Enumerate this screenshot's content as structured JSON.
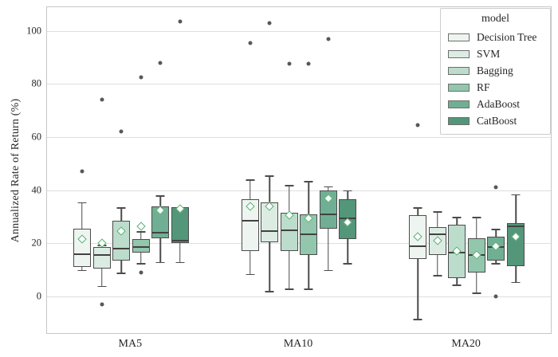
{
  "chart_data": {
    "type": "boxplot",
    "title": "",
    "ylabel": "Annualized Rate of Return (%)",
    "xlabel": "",
    "yticks": [
      0,
      20,
      40,
      60,
      80,
      100
    ],
    "ylim": [
      -13.8,
      108.9
    ],
    "grid": true,
    "categories": [
      "MA5",
      "MA10",
      "MA20"
    ],
    "legend_title": "model",
    "legend_position": "upper right",
    "colors": {
      "box_edge": "#4c4c4c",
      "median": "#424242",
      "whisker": "#4c4c4c",
      "outlier": "#585858",
      "mean_fill": "#ffffff",
      "mean_edge": "#52b06e",
      "gridline": "#dedede",
      "spine": "#c6c6c6"
    },
    "series": [
      {
        "name": "Decision Tree",
        "color": "#eef5f0",
        "boxes": [
          {
            "whislo": 10,
            "q1": 11,
            "med": 16,
            "q3": 25.5,
            "whishi": 35.5,
            "mean": 21.5,
            "outliers": [
              47
            ]
          },
          {
            "whislo": 8.5,
            "q1": 17,
            "med": 28.5,
            "q3": 36.5,
            "whishi": 44,
            "mean": 34,
            "outliers": [
              95.5
            ]
          },
          {
            "whislo": -8.5,
            "q1": 14,
            "med": 19,
            "q3": 30.5,
            "whishi": 33.5,
            "mean": 22.5,
            "outliers": [
              64.5
            ]
          }
        ]
      },
      {
        "name": "SVM",
        "color": "#dcece3",
        "boxes": [
          {
            "whislo": 4,
            "q1": 10.5,
            "med": 15.5,
            "q3": 18.5,
            "whishi": 19.5,
            "mean": 20,
            "outliers": [
              74,
              -3
            ]
          },
          {
            "whislo": 2,
            "q1": 20.5,
            "med": 24.5,
            "q3": 35.5,
            "whishi": 45.5,
            "mean": 34,
            "outliers": [
              103
            ]
          },
          {
            "whislo": 8,
            "q1": 15.5,
            "med": 23.5,
            "q3": 26,
            "whishi": 32,
            "mean": 21,
            "outliers": []
          }
        ]
      },
      {
        "name": "Bagging",
        "color": "#bcdccc",
        "boxes": [
          {
            "whislo": 9,
            "q1": 13.5,
            "med": 18,
            "q3": 28.5,
            "whishi": 33.5,
            "mean": 24.5,
            "outliers": [
              62
            ]
          },
          {
            "whislo": 3,
            "q1": 17,
            "med": 25,
            "q3": 31.5,
            "whishi": 42,
            "mean": 30.5,
            "outliers": [
              87.5
            ]
          },
          {
            "whislo": 4.5,
            "q1": 7,
            "med": 16.5,
            "q3": 27,
            "whishi": 30,
            "mean": 17,
            "outliers": []
          }
        ]
      },
      {
        "name": "RF",
        "color": "#92c6ad",
        "boxes": [
          {
            "whislo": 12.5,
            "q1": 16.5,
            "med": 18.5,
            "q3": 21.5,
            "whishi": 24.5,
            "mean": 26.5,
            "outliers": [
              82.5,
              9
            ]
          },
          {
            "whislo": 3,
            "q1": 15.5,
            "med": 23.5,
            "q3": 31,
            "whishi": 43.5,
            "mean": 29.5,
            "outliers": [
              87.5
            ]
          },
          {
            "whislo": 1.5,
            "q1": 9,
            "med": 15.5,
            "q3": 22,
            "whishi": 30,
            "mean": 15.5,
            "outliers": []
          }
        ]
      },
      {
        "name": "AdaBoost",
        "color": "#70af93",
        "boxes": [
          {
            "whislo": 13,
            "q1": 22,
            "med": 24,
            "q3": 34,
            "whishi": 38,
            "mean": 32.5,
            "outliers": [
              88
            ]
          },
          {
            "whislo": 10,
            "q1": 25.5,
            "med": 31,
            "q3": 40,
            "whishi": 41.5,
            "mean": 37,
            "outliers": [
              97
            ]
          },
          {
            "whislo": 12.5,
            "q1": 13.5,
            "med": 18.5,
            "q3": 22.5,
            "whishi": 25.5,
            "mean": 19,
            "outliers": [
              41,
              0
            ]
          }
        ]
      },
      {
        "name": "CatBoost",
        "color": "#539679",
        "boxes": [
          {
            "whislo": 13,
            "q1": 20,
            "med": 21,
            "q3": 33.5,
            "whishi": 33.5,
            "mean": 33,
            "outliers": [
              103.5
            ]
          },
          {
            "whislo": 12.5,
            "q1": 21.5,
            "med": 29.5,
            "q3": 36.5,
            "whishi": 40,
            "mean": 28,
            "outliers": []
          },
          {
            "whislo": 5.5,
            "q1": 11.5,
            "med": 26.5,
            "q3": 27.5,
            "whishi": 38.5,
            "mean": 22.5,
            "outliers": []
          }
        ]
      }
    ]
  }
}
